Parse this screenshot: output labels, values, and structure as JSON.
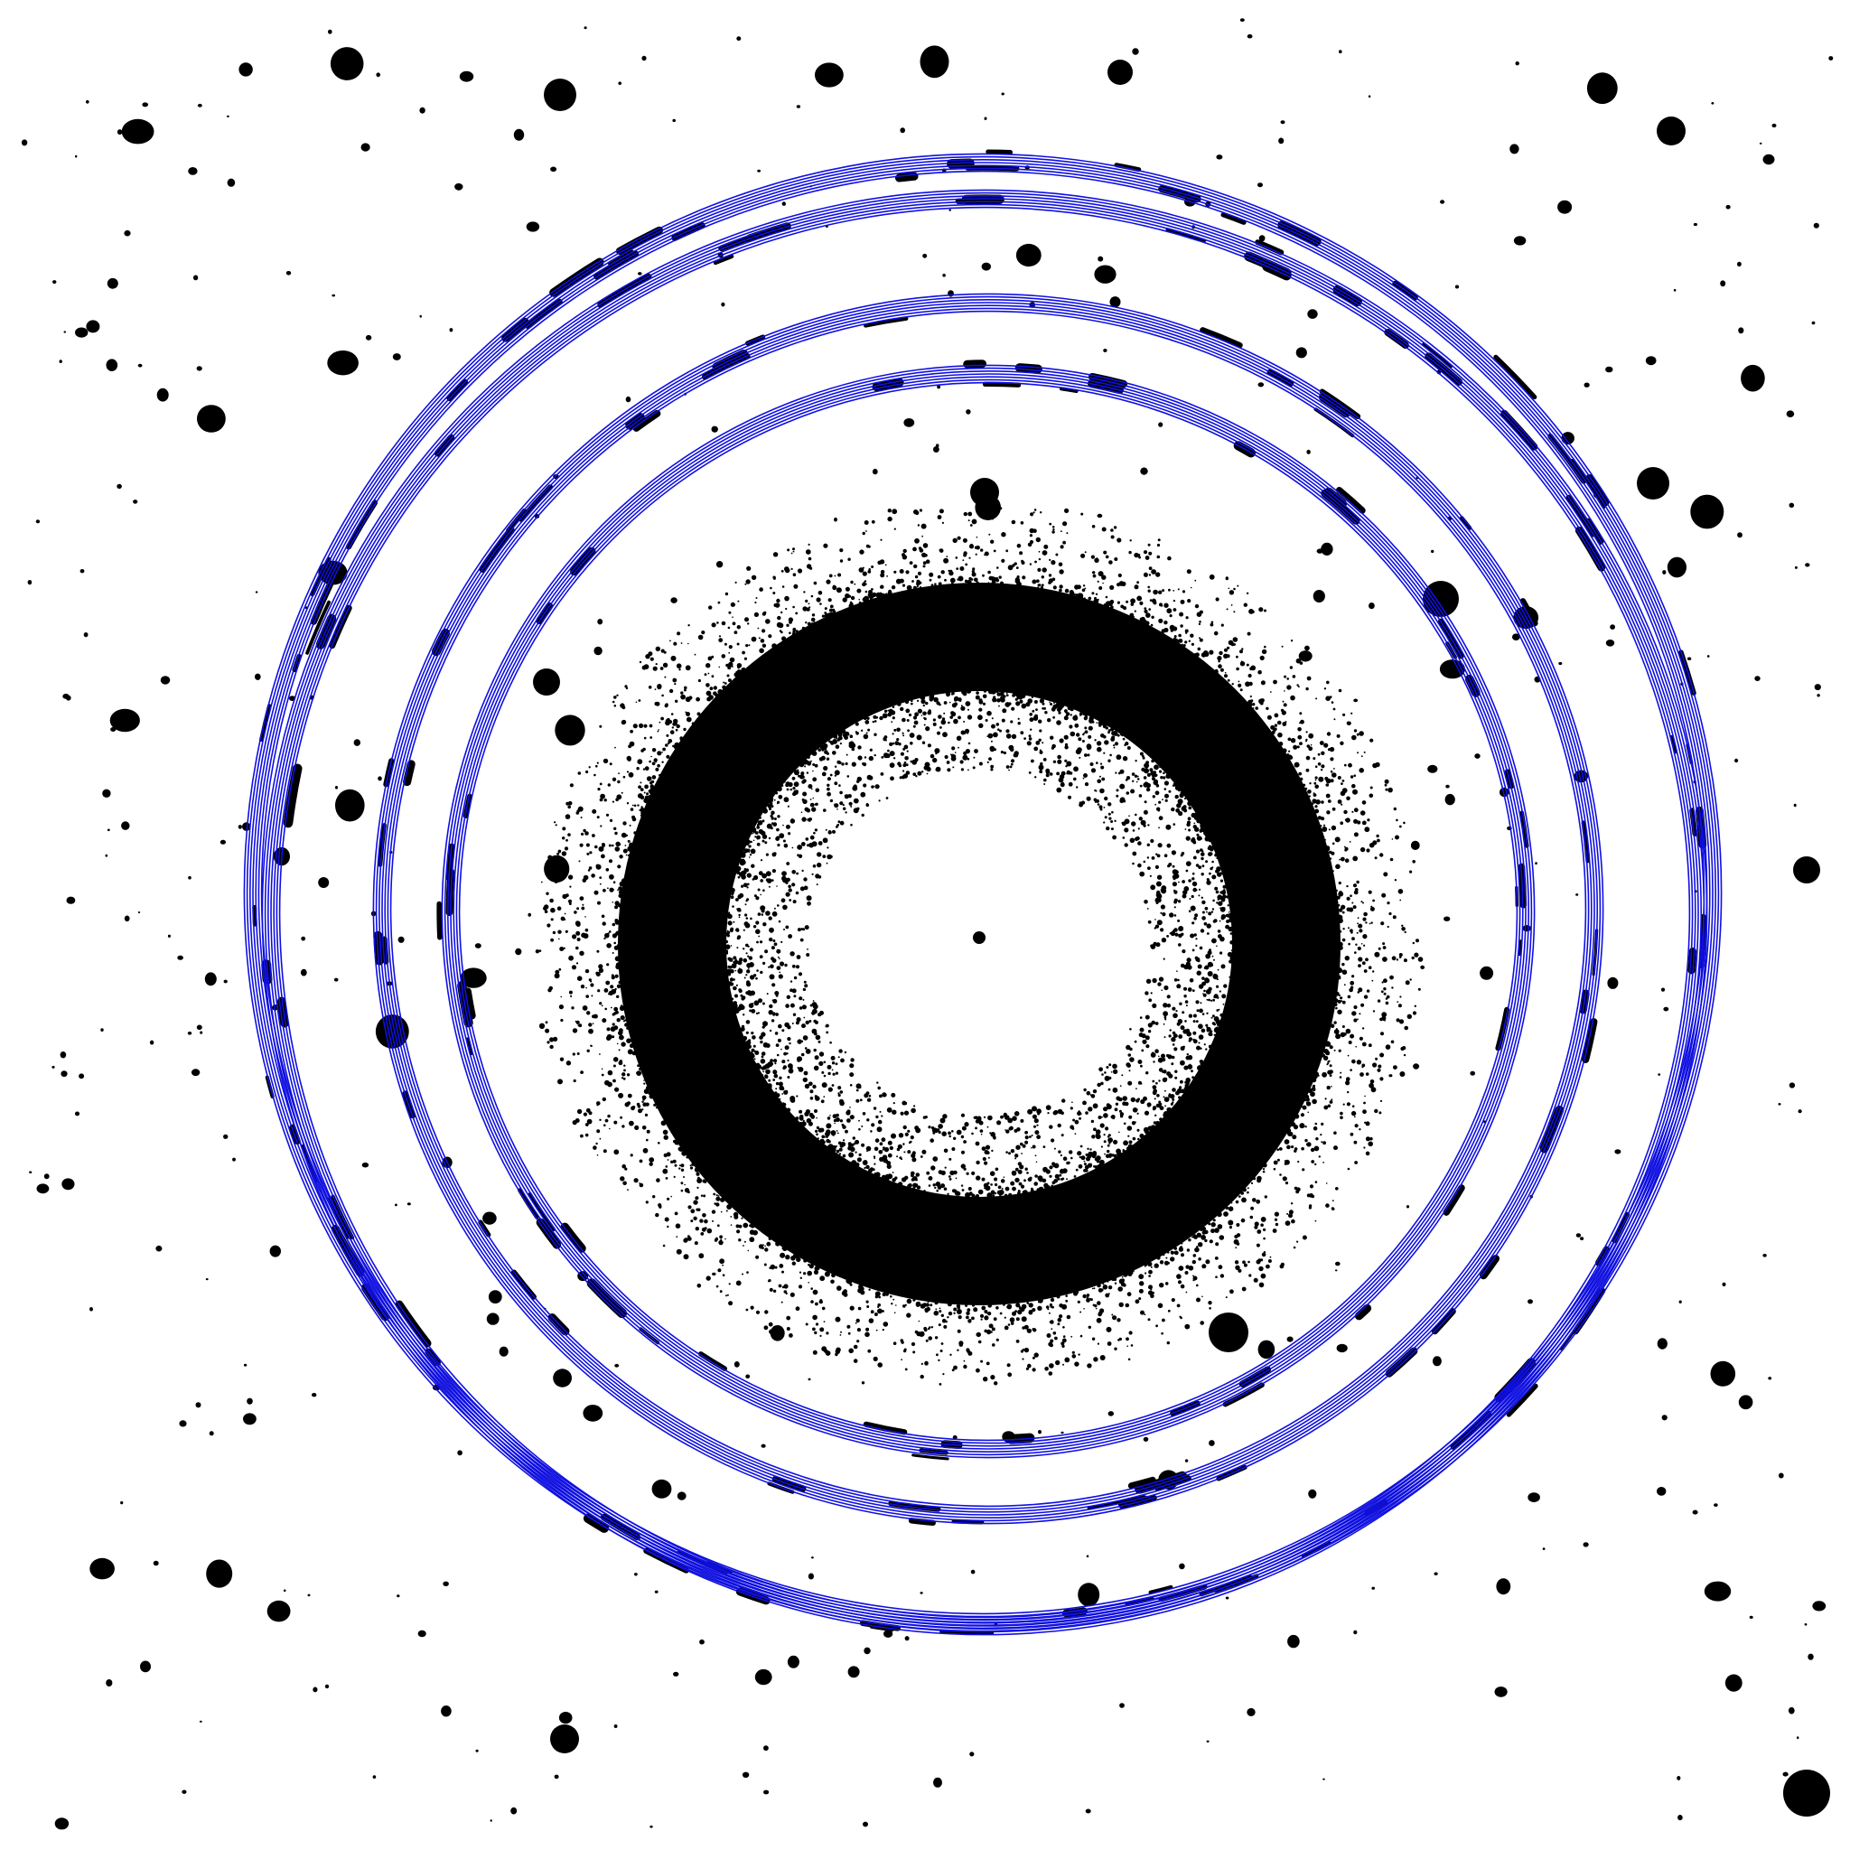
{
  "image": {
    "background_color": "#ffffff",
    "spot_color": "#000000",
    "ring_color": "#1010e0",
    "icon": "x-ray-diffraction-pattern"
  }
}
